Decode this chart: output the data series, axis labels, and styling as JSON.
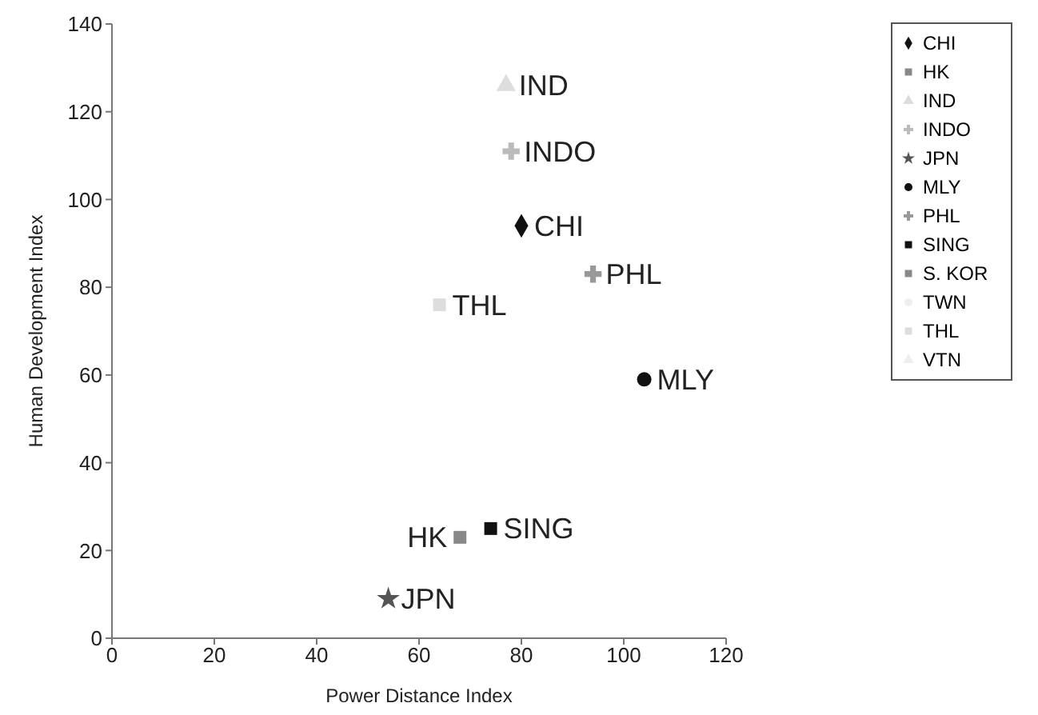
{
  "chart_data": {
    "type": "scatter",
    "xlabel": "Power Distance Index",
    "ylabel": "Human Development Index",
    "xlim": [
      0,
      120
    ],
    "xticks": [
      0,
      20,
      40,
      60,
      80,
      100,
      120
    ],
    "ylim": [
      0,
      140
    ],
    "yticks": [
      0,
      20,
      40,
      60,
      80,
      100,
      120,
      140
    ],
    "grid": false,
    "legend": "top right",
    "series": [
      {
        "name": "CHI",
        "color": "#111111",
        "marker": "diamond",
        "x": [
          80
        ],
        "values": [
          94
        ]
      },
      {
        "name": "HK",
        "color": "#888888",
        "marker": "square",
        "x": [
          68
        ],
        "values": [
          23
        ]
      },
      {
        "name": "IND",
        "color": "#dddddd",
        "marker": "triangle",
        "x": [
          77
        ],
        "values": [
          126
        ]
      },
      {
        "name": "INDO",
        "color": "#bbbbbb",
        "marker": "cross",
        "x": [
          78
        ],
        "values": [
          111
        ]
      },
      {
        "name": "JPN",
        "color": "#555555",
        "marker": "star",
        "x": [
          54
        ],
        "values": [
          9
        ]
      },
      {
        "name": "MLY",
        "color": "#111111",
        "marker": "circle",
        "x": [
          104
        ],
        "values": [
          59
        ]
      },
      {
        "name": "PHL",
        "color": "#999999",
        "marker": "cross",
        "x": [
          94
        ],
        "values": [
          83
        ]
      },
      {
        "name": "SING",
        "color": "#111111",
        "marker": "square",
        "x": [
          74
        ],
        "values": [
          25
        ]
      },
      {
        "name": "S. KOR",
        "color": "#888888",
        "marker": "square"
      },
      {
        "name": "TWN",
        "color": "#eeeeee",
        "marker": "circle"
      },
      {
        "name": "THL",
        "color": "#dddddd",
        "marker": "square",
        "x": [
          64
        ],
        "values": [
          76
        ]
      },
      {
        "name": "VTN",
        "color": "#eeeeee",
        "marker": "triangle"
      }
    ]
  }
}
